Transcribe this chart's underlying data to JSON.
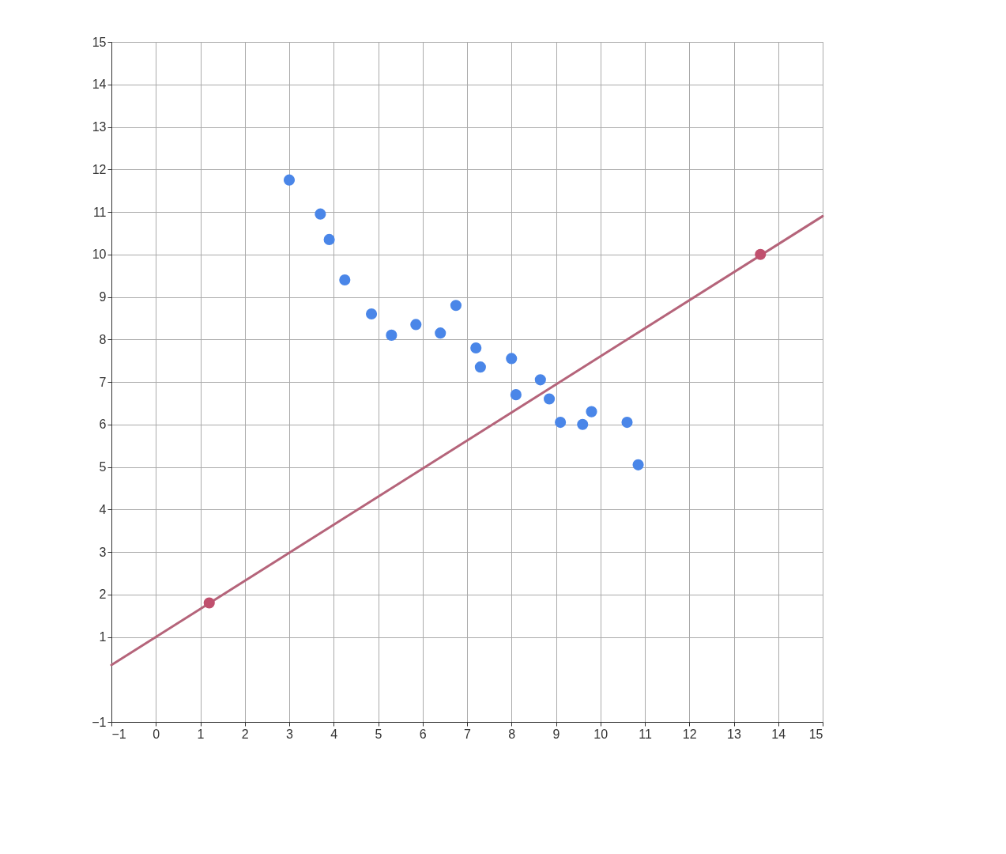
{
  "chart_data": {
    "type": "scatter",
    "xlim": [
      -1,
      15
    ],
    "ylim": [
      -1,
      15
    ],
    "xticks": [
      -1,
      0,
      1,
      2,
      3,
      4,
      5,
      6,
      7,
      8,
      9,
      10,
      11,
      12,
      13,
      14,
      15
    ],
    "yticks": [
      -1,
      1,
      2,
      3,
      4,
      5,
      6,
      7,
      8,
      9,
      10,
      11,
      12,
      13,
      14,
      15
    ],
    "grid": true,
    "series": [
      {
        "color": "#4a86e8",
        "x": [
          3.0,
          3.7,
          3.9,
          4.25,
          4.85,
          5.3,
          5.85,
          6.4,
          6.75,
          7.2,
          7.3,
          8.0,
          8.1,
          8.65,
          8.85,
          9.1,
          9.6,
          9.8,
          10.6,
          10.85
        ],
        "values": [
          11.75,
          10.95,
          10.35,
          9.4,
          8.6,
          8.1,
          8.35,
          8.15,
          8.8,
          7.8,
          7.35,
          7.55,
          6.7,
          7.05,
          6.6,
          6.05,
          6.0,
          6.3,
          6.05,
          5.05
        ]
      },
      {
        "type": "line",
        "color": "#b5647a",
        "x": [
          -1,
          15
        ],
        "values": [
          0.34,
          10.9
        ]
      },
      {
        "color": "#c0506e",
        "x": [
          1.2,
          13.6
        ],
        "values": [
          1.8,
          10
        ]
      }
    ]
  }
}
